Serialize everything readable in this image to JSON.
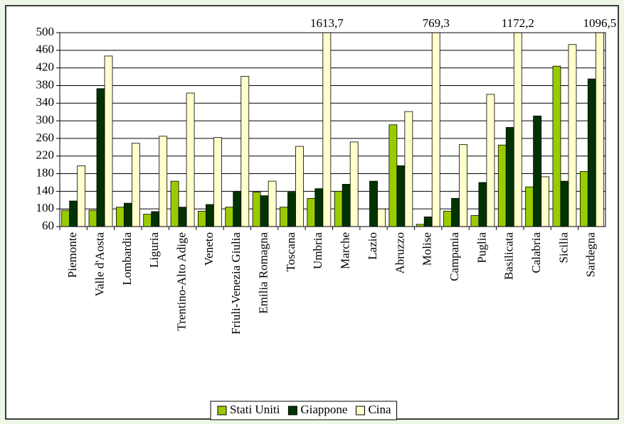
{
  "chart_data": {
    "type": "bar",
    "categories": [
      "Piemonte",
      "Valle d'Aosta",
      "Lombardia",
      "Liguria",
      "Trentino-Alto Adige",
      "Veneto",
      "Friuli-Venezia Giulia",
      "Emilia Romagna",
      "Toscana",
      "Umbria",
      "Marche",
      "Lazio",
      "Abruzzo",
      "Molise",
      "Campania",
      "Puglia",
      "Basilicata",
      "Calabria",
      "Sicilia",
      "Sardegna"
    ],
    "series": [
      {
        "name": "Stati Uniti",
        "color": "#99cc00",
        "values": [
          97,
          97,
          104,
          88,
          163,
          95,
          104,
          138,
          104,
          124,
          140,
          null,
          291,
          65,
          95,
          85,
          245,
          150,
          424,
          185
        ]
      },
      {
        "name": "Giappone",
        "color": "#003300",
        "values": [
          118,
          373,
          113,
          94,
          104,
          110,
          140,
          130,
          138,
          146,
          156,
          163,
          198,
          82,
          124,
          160,
          285,
          311,
          163,
          395
        ]
      },
      {
        "name": "Cina",
        "color": "#ffffcc",
        "values": [
          198,
          447,
          249,
          265,
          363,
          262,
          401,
          163,
          242,
          1613.7,
          252,
          100,
          321,
          769.3,
          246,
          360,
          1172.2,
          173,
          473,
          1096.5
        ],
        "value_labels": [
          null,
          null,
          null,
          null,
          null,
          null,
          null,
          null,
          null,
          "1613,7",
          null,
          null,
          null,
          "769,3",
          null,
          null,
          "1172,2",
          null,
          null,
          "1096,5"
        ]
      }
    ],
    "ylim": [
      60,
      500
    ],
    "yticks": [
      60,
      100,
      140,
      180,
      220,
      260,
      300,
      340,
      380,
      420,
      460,
      500
    ],
    "grid": true,
    "legend": "bottom"
  }
}
